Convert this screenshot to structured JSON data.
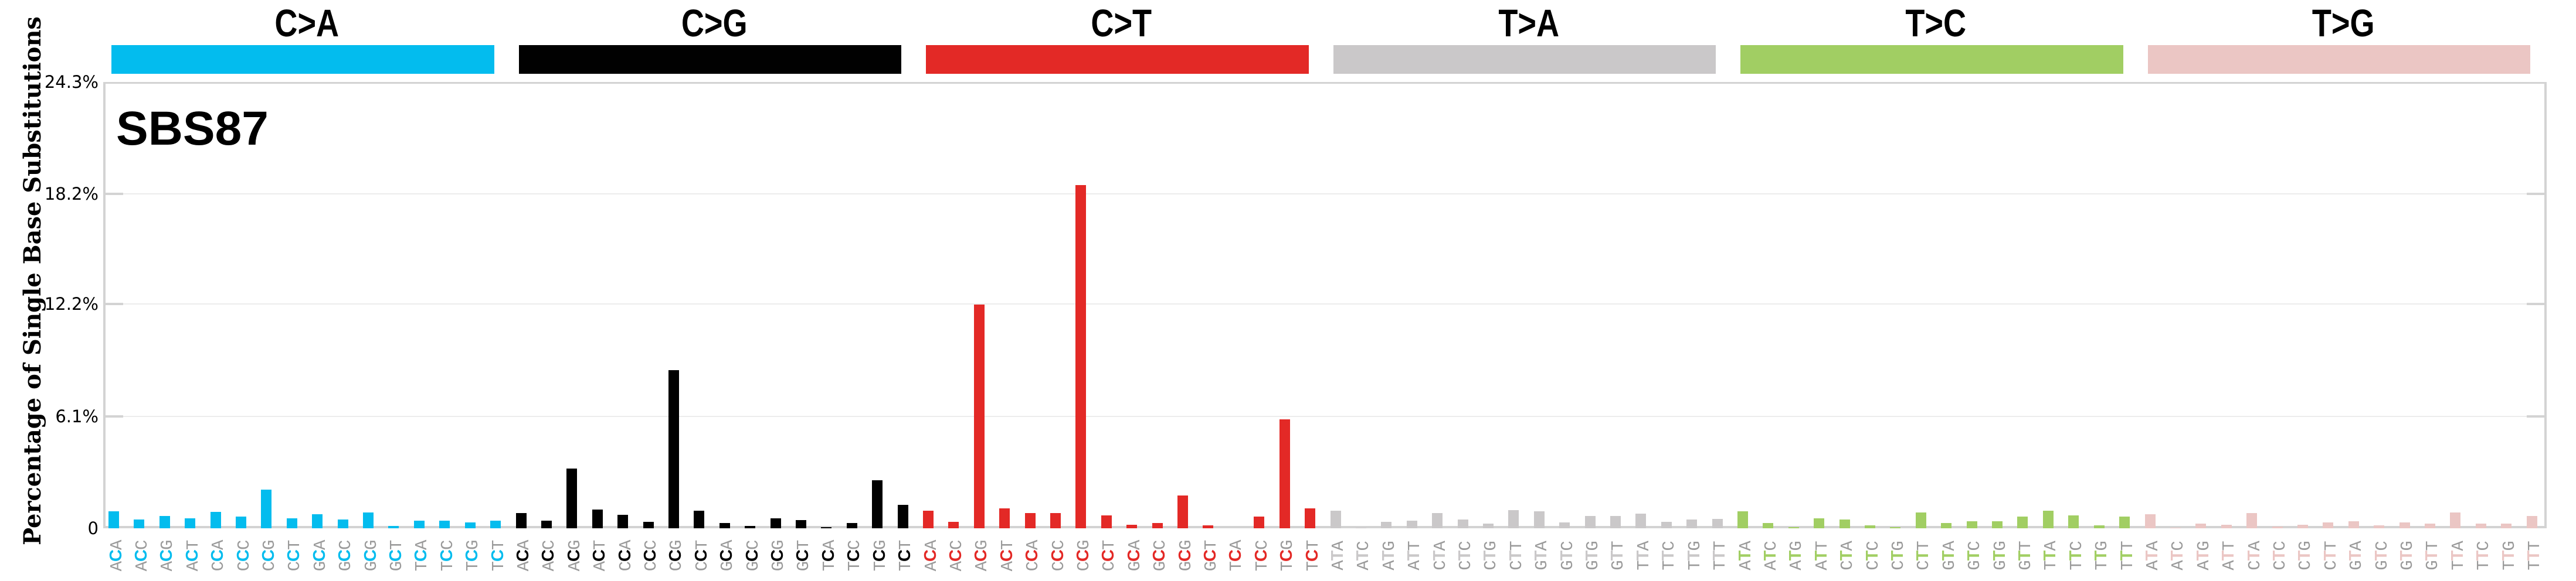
{
  "chart_data": {
    "type": "bar",
    "title": "SBS87",
    "xlabel": "",
    "ylabel": "Percentage of Single Base Substitutions",
    "ylim": [
      0,
      24.3
    ],
    "yticks": [
      "0",
      "6.1%",
      "12.2%",
      "18.2%",
      "24.3%"
    ],
    "ytick_values": [
      0,
      6.1,
      12.2,
      18.2,
      24.3
    ],
    "grid": true,
    "legend": null,
    "groups": [
      {
        "name": "C>A",
        "color": "#03bcee",
        "contexts": [
          "ACA",
          "ACC",
          "ACG",
          "ACT",
          "CCA",
          "CCC",
          "CCG",
          "CCT",
          "GCA",
          "GCC",
          "GCG",
          "GCT",
          "TCA",
          "TCC",
          "TCG",
          "TCT"
        ],
        "values": [
          0.93,
          0.49,
          0.66,
          0.53,
          0.89,
          0.63,
          2.1,
          0.53,
          0.76,
          0.49,
          0.86,
          0.12,
          0.42,
          0.42,
          0.32,
          0.42
        ]
      },
      {
        "name": "C>G",
        "color": "#010101",
        "contexts": [
          "ACA",
          "ACC",
          "ACG",
          "ACT",
          "CCA",
          "CCC",
          "CCG",
          "CCT",
          "GCA",
          "GCC",
          "GCG",
          "GCT",
          "TCA",
          "TCC",
          "TCG",
          "TCT"
        ],
        "values": [
          0.83,
          0.42,
          3.24,
          1.03,
          0.73,
          0.36,
          8.62,
          0.97,
          0.28,
          0.13,
          0.54,
          0.45,
          0.06,
          0.28,
          2.61,
          1.27
        ]
      },
      {
        "name": "C>T",
        "color": "#e32926",
        "contexts": [
          "ACA",
          "ACC",
          "ACG",
          "ACT",
          "CCA",
          "CCC",
          "CCG",
          "CCT",
          "GCA",
          "GCC",
          "GCG",
          "GCT",
          "TCA",
          "TCC",
          "TCG",
          "TCT"
        ],
        "values": [
          0.95,
          0.34,
          12.18,
          1.07,
          0.84,
          0.82,
          18.7,
          0.69,
          0.18,
          0.28,
          1.77,
          0.15,
          0.0,
          0.63,
          5.94,
          1.1
        ]
      },
      {
        "name": "T>A",
        "color": "#cac8c9",
        "contexts": [
          "ATA",
          "ATC",
          "ATG",
          "ATT",
          "CTA",
          "CTC",
          "CTG",
          "CTT",
          "GTA",
          "GTC",
          "GTG",
          "GTT",
          "TTA",
          "TTC",
          "TTG",
          "TTT"
        ],
        "values": [
          0.97,
          0.04,
          0.36,
          0.43,
          0.84,
          0.49,
          0.27,
          1.0,
          0.94,
          0.33,
          0.68,
          0.68,
          0.81,
          0.36,
          0.49,
          0.52
        ]
      },
      {
        "name": "T>C",
        "color": "#a1ce63",
        "contexts": [
          "ATA",
          "ATC",
          "ATG",
          "ATT",
          "CTA",
          "CTC",
          "CTG",
          "CTT",
          "GTA",
          "GTC",
          "GTG",
          "GTT",
          "TTA",
          "TTC",
          "TTG",
          "TTT"
        ],
        "values": [
          0.91,
          0.3,
          0.07,
          0.55,
          0.49,
          0.17,
          0.07,
          0.87,
          0.3,
          0.39,
          0.39,
          0.65,
          0.97,
          0.71,
          0.17,
          0.65
        ]
      },
      {
        "name": "T>G",
        "color": "#ebc6c4",
        "contexts": [
          "ATA",
          "ATC",
          "ATG",
          "ATT",
          "CTA",
          "CTC",
          "CTG",
          "CTT",
          "GTA",
          "GTC",
          "GTG",
          "GTT",
          "TTA",
          "TTC",
          "TTG",
          "TTT"
        ],
        "values": [
          0.78,
          0.04,
          0.27,
          0.2,
          0.84,
          0.11,
          0.2,
          0.33,
          0.37,
          0.17,
          0.33,
          0.27,
          0.87,
          0.27,
          0.25,
          0.66
        ]
      }
    ]
  },
  "signature_label": "SBS87",
  "axis": {
    "ylabel": "Percentage of Single Base Substitutions",
    "tick_labels": [
      "0",
      "6.1%",
      "12.2%",
      "18.2%",
      "24.3%"
    ]
  },
  "colors": {
    "axis_line": "#d3d3d3",
    "grid_line": "#ececec",
    "context_text": "#9a9a9a"
  }
}
